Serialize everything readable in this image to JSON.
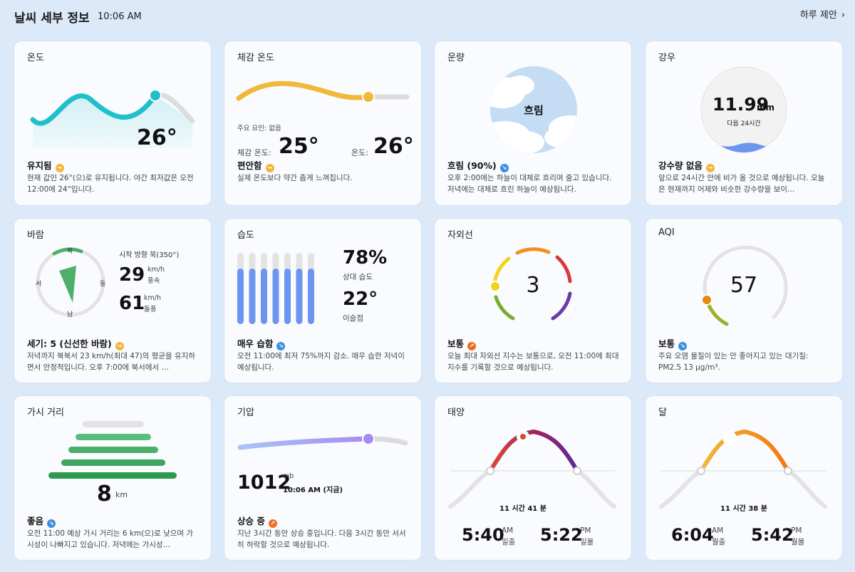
{
  "header": {
    "title": "날씨 세부 정보",
    "time": "10:06 AM",
    "suggestion": "하루 제안"
  },
  "temperature": {
    "title": "온도",
    "value": "26°",
    "status": "유지됨",
    "desc": "현재 값인 26°(으)로 유지됩니다. 야간 최저값은 오전 12:00에 24°입니다."
  },
  "feels_like": {
    "title": "체감 온도",
    "factor": "주요 요인: 없음",
    "feels_label": "체감 온도:",
    "feels_value": "25°",
    "temp_label": "온도:",
    "temp_value": "26°",
    "status": "편안함",
    "desc": "실제 온도보다 약간 춥게 느껴집니다."
  },
  "cloud": {
    "title": "운량",
    "center_label": "흐림",
    "status": "흐림 (90%)",
    "desc": "오후 2:00에는 하늘이 대체로 흐리며 줄고 있습니다. 저녁에는 대체로 흐린 하늘이 예상됩니다."
  },
  "rain": {
    "title": "강우",
    "value": "11.99",
    "unit": "mm",
    "sub": "다음 24시간",
    "status": "강수량 없음",
    "desc": "앞으로 24시간 안에 비가 올 것으로 예상됩니다. 오늘은 현재까지 어제와 비슷한 강수량을 보이…"
  },
  "wind": {
    "title": "바람",
    "north": "북",
    "south": "남",
    "east": "동",
    "west": "서",
    "direction": "시작 방향 북(350°)",
    "speed": "29",
    "speed_unit": "km/h",
    "speed_label": "풍속",
    "gust": "61",
    "gust_unit": "km/h",
    "gust_label": "돌풍",
    "status": "세기: 5 (신선한 바람)",
    "desc": "저녁까지 북북서 23 km/h(최대 47)의 평균을 유지하면서 안정적입니다. 오후 7:00에 북서에서 …"
  },
  "humidity": {
    "title": "습도",
    "value": "78%",
    "value_label": "상대 습도",
    "dew": "22°",
    "dew_label": "이슬점",
    "status": "매우 습함",
    "desc": "오전 11:00에 최저 75%까지 감소. 매우 습한 저녁이 예상됩니다.",
    "bars": [
      0.78,
      0.78,
      0.78,
      0.78,
      0.78,
      0.78,
      0.78
    ]
  },
  "uv": {
    "title": "자외선",
    "value": "3",
    "status": "보통",
    "desc": "오늘 최대 자외선 지수는 보통으로, 오전 11:00에 최대 지수를 기록할 것으로 예상됩니다.",
    "level": 0.27
  },
  "aqi": {
    "title": "AQI",
    "value": "57",
    "status": "보통",
    "desc": "주요 오염 물질이 있는 안 좋아지고 있는 대기질: PM2.5 13 µg/m³.",
    "level": 0.19
  },
  "visibility": {
    "title": "가시 거리",
    "value": "8",
    "unit": "km",
    "status": "좋음",
    "desc": "오전 11:00 예상 가시 거리는 6 km(으)로 낮으며 가시성이 나빠지고 있습니다. 저녁에는 가시성…"
  },
  "pressure": {
    "title": "기압",
    "value": "1012",
    "unit": "mb",
    "time": "10:06 AM (지금)",
    "status": "상승 중",
    "desc": "지난 3시간 동안 상승 중입니다. 다음 3시간 동안 서서히 하락할 것으로 예상됩니다."
  },
  "sun": {
    "title": "태양",
    "duration": "11 시간 41 분",
    "rise": "5:40",
    "rise_ampm": "AM",
    "rise_label": "일출",
    "set": "5:22",
    "set_ampm": "PM",
    "set_label": "일몰"
  },
  "moon": {
    "title": "달",
    "duration": "11 시간 38 분",
    "rise": "6:04",
    "rise_ampm": "AM",
    "rise_label": "월출",
    "set": "5:42",
    "set_ampm": "PM",
    "set_label": "월몰"
  },
  "colors": {
    "temp": "#1fbfcb",
    "feels": "#f0b93a",
    "pressure": "#a58bf0",
    "humidity": "#6b95ef",
    "vis": "#35a85a"
  }
}
